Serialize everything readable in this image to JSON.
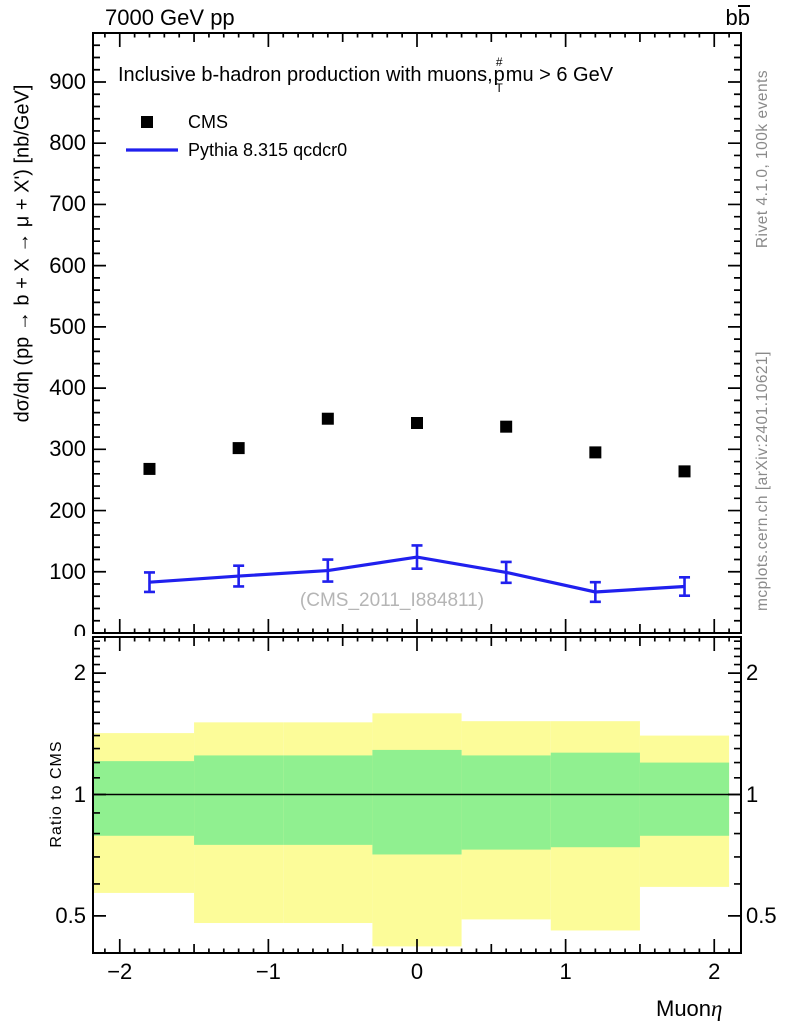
{
  "header": {
    "collision": "7000 GeV pp",
    "process_base": "b",
    "process_bar": "b"
  },
  "main_panel": {
    "title_prefix": "Inclusive b-hadron production with muons, ",
    "pt_sup": "#",
    "pt_base": "p",
    "pt_sub": "T",
    "title_suffix": "mu > 6 GeV",
    "ylabel": "dσ/dη (pp → b + X → μ + X') [nb/GeV]",
    "watermark": "(CMS_2011_I884811)",
    "legend": [
      {
        "label": "CMS",
        "marker": "black-filled-square"
      },
      {
        "label": "Pythia 8.315 qcdcr0",
        "marker": "blue-line"
      }
    ]
  },
  "ratio_panel": {
    "ylabel": "Ratio to CMS"
  },
  "xaxis": {
    "label_word": "Muon",
    "label_symbol": "η"
  },
  "side_notes": {
    "top": "Rivet 4.1.0,  100k events",
    "bottom": "mcplots.cern.ch [arXiv:2401.10621]"
  },
  "colors": {
    "cms": "#000000",
    "pythia": "#2020ee",
    "band_yellow": "#fcfc99",
    "band_green": "#90f090",
    "frame": "#000000",
    "note_gray": "#8a8a8a",
    "watermark_gray": "#b5b5b5"
  },
  "chart_data": {
    "type": "scatter+line with ratio bands",
    "title": "Inclusive b-hadron production with muons, pT^mu > 6 GeV",
    "xlabel": "Muon eta",
    "ylabel": "dsigma/deta (pp -> b + X -> mu + X') [nb/GeV]",
    "x": [
      -1.8,
      -1.2,
      -0.6,
      0,
      0.6,
      1.2,
      1.8
    ],
    "series": [
      {
        "name": "CMS",
        "type": "scatter",
        "marker": "filled-square",
        "color": "#000000",
        "values": [
          268,
          302,
          350,
          343,
          337,
          295,
          264
        ]
      },
      {
        "name": "Pythia 8.315 qcdcr0",
        "type": "line",
        "color": "#2020ee",
        "values": [
          83,
          93,
          102,
          124,
          99,
          67,
          76
        ],
        "yerr": [
          16,
          17,
          18,
          19,
          17,
          16,
          15
        ]
      }
    ],
    "xlim": [
      -2.18,
      2.18
    ],
    "ylim": [
      0,
      980
    ],
    "yticks": [
      0,
      100,
      200,
      300,
      400,
      500,
      600,
      700,
      800,
      900
    ],
    "xticks": [
      -2,
      -1,
      0,
      1,
      2
    ],
    "grid": false,
    "legend_position": "top-left-inside",
    "ratio": {
      "ylabel": "Ratio to CMS",
      "scale": "log",
      "ylim": [
        0.405,
        2.46
      ],
      "line_at": 1,
      "ratio_ticks": [
        2,
        1,
        0.5
      ],
      "bin_edges": [
        -2.1,
        -1.5,
        -0.9,
        -0.3,
        0.3,
        0.9,
        1.5,
        2.1
      ],
      "yellow_hi": [
        1.42,
        1.51,
        1.51,
        1.59,
        1.52,
        1.52,
        1.4
      ],
      "yellow_lo": [
        0.57,
        0.48,
        0.48,
        0.42,
        0.49,
        0.46,
        0.59
      ],
      "green_hi": [
        1.21,
        1.25,
        1.25,
        1.29,
        1.25,
        1.27,
        1.2
      ],
      "green_lo": [
        0.79,
        0.75,
        0.75,
        0.71,
        0.73,
        0.74,
        0.79
      ]
    }
  }
}
